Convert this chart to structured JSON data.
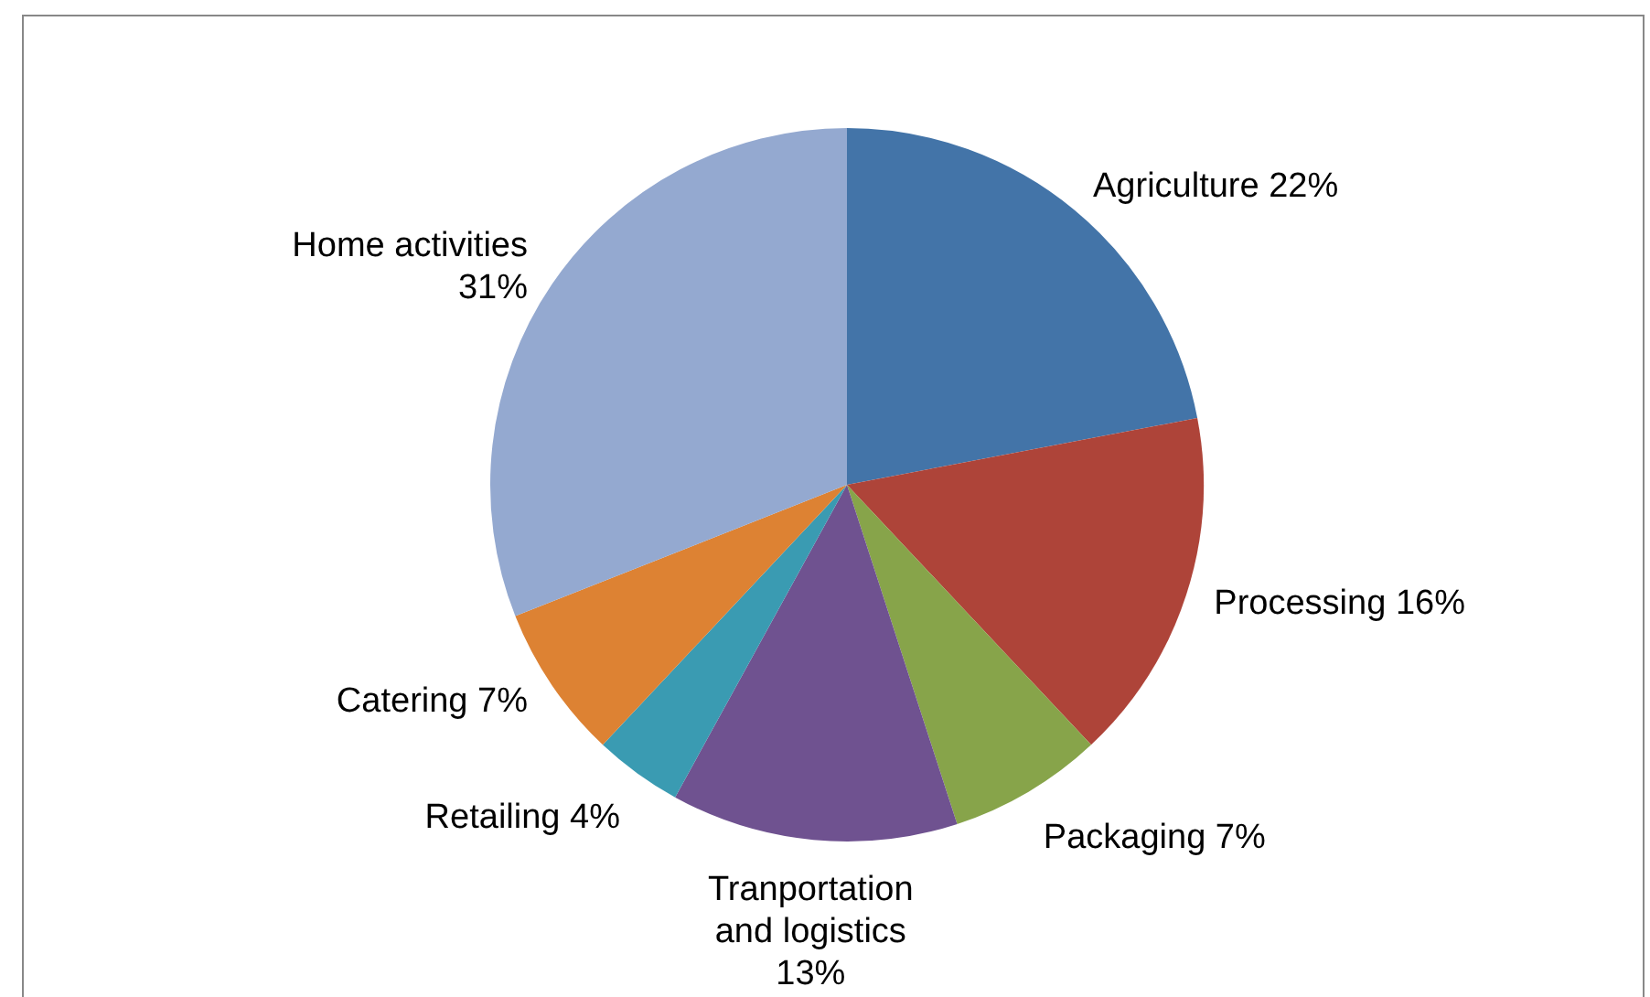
{
  "chart_data": {
    "type": "pie",
    "categories": [
      "Agriculture",
      "Processing",
      "Packaging",
      "Tranportation and logistics",
      "Retailing",
      "Catering",
      "Home activities"
    ],
    "values": [
      22,
      16,
      7,
      13,
      4,
      7,
      31
    ],
    "value_labels": [
      "22%",
      "16%",
      "7%",
      "13%",
      "4%",
      "7%",
      "31%"
    ],
    "colors": [
      "#4374a8",
      "#ae4439",
      "#87a44a",
      "#6f5290",
      "#3a9bb2",
      "#dd8233",
      "#94a9d0"
    ],
    "legend": false
  }
}
